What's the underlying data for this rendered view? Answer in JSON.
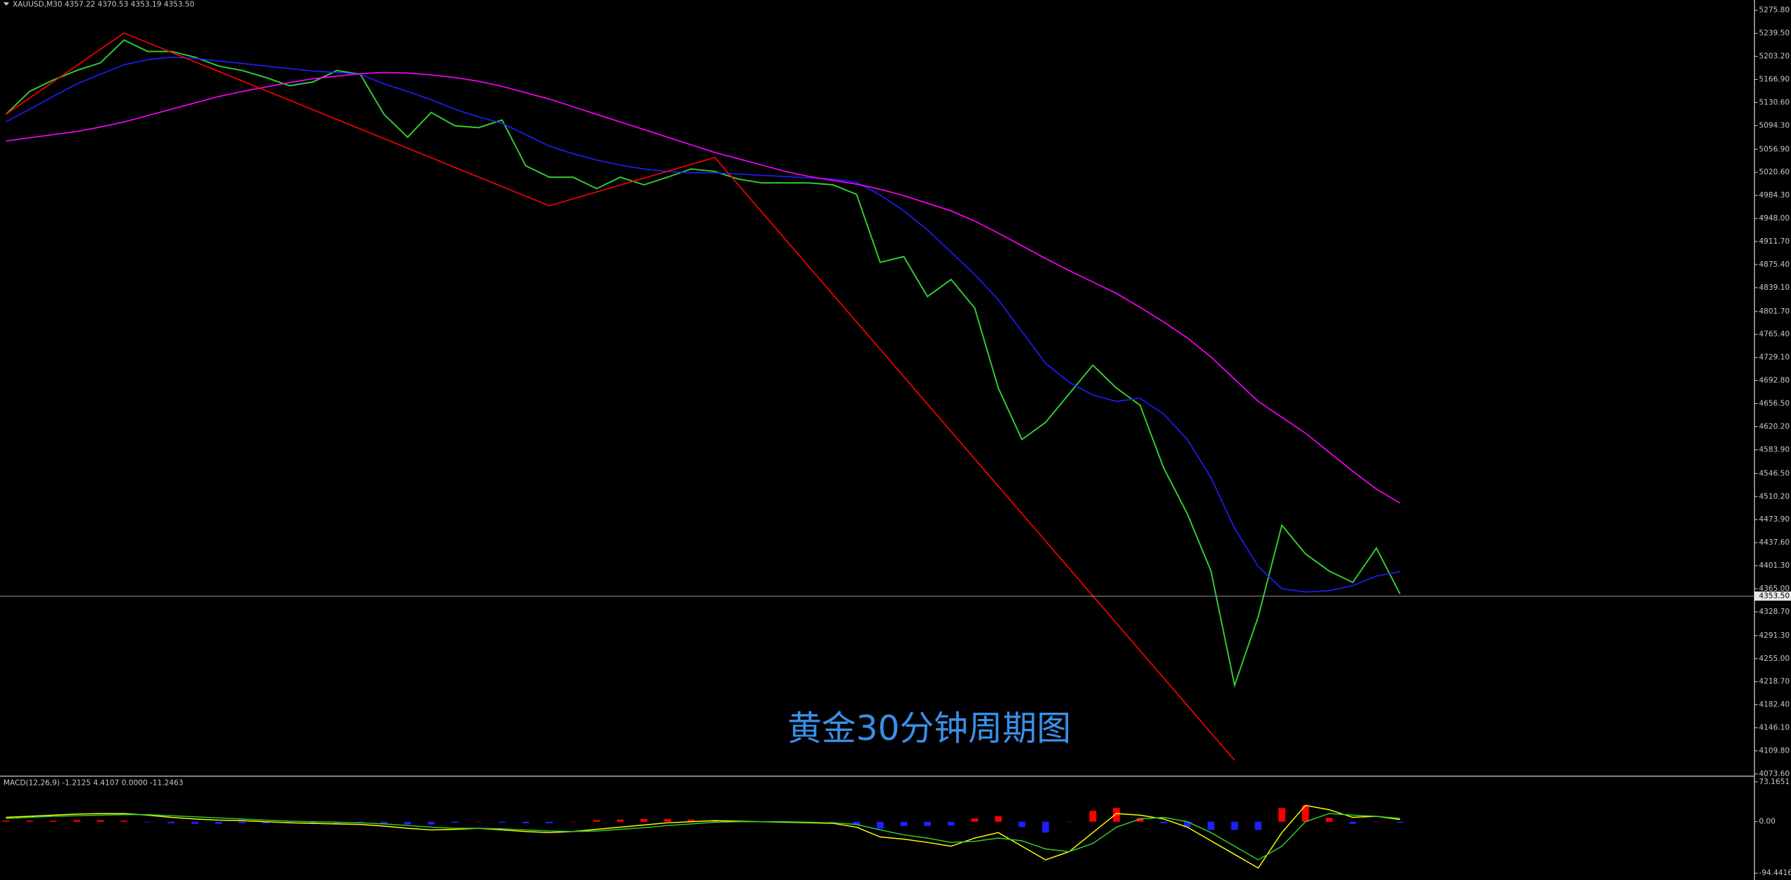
{
  "chart_data": [
    {
      "type": "line",
      "title": "XAUUSD,M30  4357.22 4370.53 4353.19 4353.50",
      "annotation": "黄金30分钟周期图",
      "x": [
        0,
        1,
        2,
        3,
        4,
        5,
        6,
        7,
        8,
        9,
        10,
        11,
        12,
        13,
        14,
        15,
        16,
        17,
        18,
        19,
        20,
        21,
        22,
        23,
        24,
        25,
        26,
        27,
        28,
        29,
        30,
        31,
        32,
        33,
        34,
        35,
        36,
        37,
        38,
        39,
        40,
        41,
        42,
        43,
        44,
        45,
        46,
        47,
        48,
        49,
        50,
        51,
        52,
        53,
        54,
        55,
        56,
        57,
        58,
        59
      ],
      "xlim": [
        -0.25,
        74
      ],
      "ylim": [
        4071.8,
        5288.4
      ],
      "yticks": [
        {
          "value": 5275.8,
          "label": "5275.80"
        },
        {
          "value": 5239.5,
          "label": "5239.50"
        },
        {
          "value": 5203.2,
          "label": "5203.20"
        },
        {
          "value": 5166.9,
          "label": "5166.90"
        },
        {
          "value": 5130.6,
          "label": "5130.60"
        },
        {
          "value": 5094.3,
          "label": "5094.30"
        },
        {
          "value": 5056.9,
          "label": "5056.90"
        },
        {
          "value": 5020.6,
          "label": "5020.60"
        },
        {
          "value": 4984.3,
          "label": "4984.30"
        },
        {
          "value": 4948,
          "label": "4948.00"
        },
        {
          "value": 4911.7,
          "label": "4911.70"
        },
        {
          "value": 4875.4,
          "label": "4875.40"
        },
        {
          "value": 4839.1,
          "label": "4839.10"
        },
        {
          "value": 4801.7,
          "label": "4801.70"
        },
        {
          "value": 4765.4,
          "label": "4765.40"
        },
        {
          "value": 4729.1,
          "label": "4729.10"
        },
        {
          "value": 4692.8,
          "label": "4692.80"
        },
        {
          "value": 4656.5,
          "label": "4656.50"
        },
        {
          "value": 4620.2,
          "label": "4620.20"
        },
        {
          "value": 4583.9,
          "label": "4583.90"
        },
        {
          "value": 4546.5,
          "label": "4546.50"
        },
        {
          "value": 4510.2,
          "label": "4510.20"
        },
        {
          "value": 4473.9,
          "label": "4473.90"
        },
        {
          "value": 4437.6,
          "label": "4437.60"
        },
        {
          "value": 4401.3,
          "label": "4401.30"
        },
        {
          "value": 4365,
          "label": "4365.00"
        },
        {
          "value": 4328.7,
          "label": "4328.70"
        },
        {
          "value": 4291.3,
          "label": "4291.30"
        },
        {
          "value": 4255,
          "label": "4255.00"
        },
        {
          "value": 4218.7,
          "label": "4218.70"
        },
        {
          "value": 4182.4,
          "label": "4182.40"
        },
        {
          "value": 4146.1,
          "label": "4146.10"
        },
        {
          "value": 4109.8,
          "label": "4109.80"
        },
        {
          "value": 4073.6,
          "label": "4073.60"
        }
      ],
      "current_price": {
        "value": 4353.5,
        "label": "4353.50"
      },
      "series": [
        {
          "color": "#32cd32",
          "values": [
            5112,
            5148,
            5166,
            5181,
            5193,
            5229,
            5211,
            5211,
            5202,
            5188,
            5181,
            5170,
            5157,
            5163,
            5181,
            5175,
            5112,
            5076,
            5115,
            5094,
            5091,
            5103,
            5031,
            5013,
            5013,
            4995,
            5013,
            5001,
            5013,
            5026,
            5022,
            5010,
            5004,
            5004,
            5004,
            5001,
            4986,
            4879,
            4888,
            4825,
            4852,
            4807,
            4681,
            4600,
            4627,
            4672,
            4717,
            4681,
            4654,
            4555,
            4483,
            4393,
            4213,
            4321,
            4465,
            4420,
            4393,
            4375,
            4429,
            4357
          ]
        },
        {
          "color": "#1e1eff",
          "values": [
            5100,
            5120,
            5140,
            5160,
            5175,
            5190,
            5198,
            5202,
            5200,
            5196,
            5192,
            5188,
            5184,
            5180,
            5178,
            5175,
            5160,
            5148,
            5135,
            5120,
            5108,
            5098,
            5080,
            5062,
            5050,
            5040,
            5032,
            5026,
            5022,
            5020,
            5020,
            5018,
            5016,
            5014,
            5012,
            5010,
            5005,
            4985,
            4960,
            4930,
            4895,
            4860,
            4820,
            4770,
            4720,
            4690,
            4670,
            4660,
            4665,
            4640,
            4600,
            4540,
            4460,
            4400,
            4365,
            4360,
            4362,
            4370,
            4385,
            4392
          ]
        },
        {
          "color": "#ff00ff",
          "values": [
            5070,
            5075,
            5080,
            5085,
            5092,
            5100,
            5110,
            5120,
            5130,
            5140,
            5148,
            5155,
            5162,
            5168,
            5172,
            5176,
            5178,
            5177,
            5174,
            5170,
            5164,
            5156,
            5146,
            5136,
            5124,
            5112,
            5100,
            5088,
            5076,
            5064,
            5052,
            5042,
            5032,
            5022,
            5014,
            5008,
            5002,
            4994,
            4984,
            4972,
            4960,
            4944,
            4925,
            4905,
            4885,
            4866,
            4848,
            4830,
            4808,
            4785,
            4760,
            4730,
            4695,
            4660,
            4635,
            4610,
            4580,
            4550,
            4522,
            4500
          ]
        },
        {
          "color": "#ff0000",
          "x": [
            0,
            5,
            23,
            30,
            52
          ],
          "values": [
            5112,
            5240,
            4968,
            5044,
            4095
          ]
        }
      ]
    },
    {
      "type": "macd",
      "title": "MACD(12,26,9) -1.2125 4.4107 0.0000 -11.2463",
      "ylim": [
        -107,
        81.6
      ],
      "yticks": [
        {
          "value": 73.1651,
          "label": "73.1651"
        },
        {
          "value": 0,
          "label": "0.00"
        },
        {
          "value": -94.4416,
          "label": "-94.4416"
        }
      ],
      "histogram": {
        "positive_color": "#ff0000",
        "negative_color": "#1e1eff",
        "values": [
          2,
          2,
          2,
          3,
          3,
          2,
          -1,
          -3,
          -4,
          -4,
          -3,
          -3,
          -3,
          -3,
          -3,
          -3,
          -4,
          -5,
          -5,
          -2,
          0,
          -2,
          -3,
          -3,
          0,
          3,
          4,
          5,
          5,
          4,
          3,
          1,
          0,
          -1,
          -1,
          -1,
          -5,
          -13,
          -8,
          -8,
          -7,
          6,
          10,
          -10,
          -20,
          0,
          20,
          25,
          7,
          -3,
          -10,
          -15,
          -15,
          -15,
          25,
          30,
          7,
          -4,
          0,
          -2
        ]
      },
      "series": [
        {
          "color": "#ffff00",
          "values": [
            8,
            10,
            12,
            14,
            15,
            15,
            12,
            8,
            5,
            3,
            2,
            0,
            -2,
            -3,
            -4,
            -5,
            -8,
            -12,
            -15,
            -14,
            -12,
            -15,
            -18,
            -20,
            -18,
            -14,
            -10,
            -6,
            -2,
            0,
            2,
            1,
            0,
            -1,
            -2,
            -3,
            -10,
            -28,
            -32,
            -38,
            -45,
            -30,
            -20,
            -45,
            -70,
            -55,
            -20,
            15,
            12,
            5,
            -10,
            -35,
            -60,
            -85,
            -20,
            30,
            22,
            8,
            10,
            4
          ]
        },
        {
          "color": "#32cd32",
          "values": [
            6,
            8,
            10,
            11,
            12,
            13,
            13,
            11,
            9,
            7,
            5,
            3,
            1,
            0,
            -1,
            -2,
            -4,
            -7,
            -10,
            -12,
            -12,
            -13,
            -15,
            -17,
            -18,
            -17,
            -14,
            -11,
            -7,
            -4,
            -1,
            0,
            0,
            0,
            -1,
            -2,
            -5,
            -15,
            -24,
            -30,
            -38,
            -36,
            -30,
            -35,
            -50,
            -55,
            -40,
            -10,
            5,
            8,
            0,
            -20,
            -45,
            -70,
            -45,
            0,
            15,
            12,
            10,
            6
          ]
        }
      ]
    }
  ]
}
